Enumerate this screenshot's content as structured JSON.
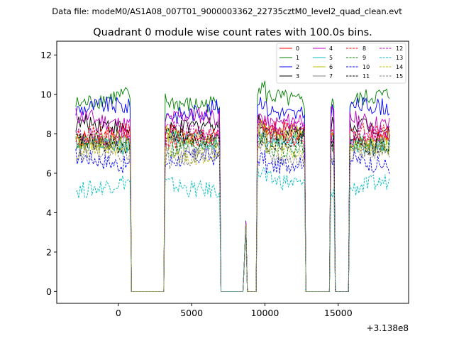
{
  "header": {
    "data_file": "Data file: modeM0/AS1A08_007T01_9000003362_22735cztM0_level2_quad_clean.evt"
  },
  "chart_data": {
    "type": "line",
    "title": "Quadrant 0 module wise count rates with 100.0s bins.",
    "xlabel": "",
    "ylabel": "",
    "offset_label": "+3.138e8",
    "xlim": [
      -4200,
      19800
    ],
    "ylim": [
      -0.6,
      12.7
    ],
    "xticks": [
      0,
      5000,
      10000,
      15000
    ],
    "yticks": [
      0,
      2,
      4,
      6,
      8,
      10,
      12
    ],
    "x_start": -2900,
    "x_step": 100,
    "segments": [
      [
        -2900,
        800
      ],
      [
        3200,
        6900
      ],
      [
        9500,
        12700
      ],
      [
        14500,
        14700
      ],
      [
        15800,
        18500
      ]
    ],
    "blips": [
      [
        8700,
        3.6
      ],
      [
        8600,
        1.6
      ]
    ],
    "legend": {
      "placement": "upper right",
      "entries": [
        {
          "label": "0",
          "color": "#ff0000",
          "dash": "solid",
          "level": 8.0
        },
        {
          "label": "1",
          "color": "#008000",
          "dash": "solid",
          "level": 9.7
        },
        {
          "label": "2",
          "color": "#0000ff",
          "dash": "solid",
          "level": 9.2
        },
        {
          "label": "3",
          "color": "#000000",
          "dash": "solid",
          "level": 8.3
        },
        {
          "label": "4",
          "color": "#bf00bf",
          "dash": "solid",
          "level": 8.7
        },
        {
          "label": "5",
          "color": "#00bfbf",
          "dash": "solid",
          "level": 7.6
        },
        {
          "label": "6",
          "color": "#bfbf00",
          "dash": "solid",
          "level": 7.8
        },
        {
          "label": "7",
          "color": "#808080",
          "dash": "solid",
          "level": 7.5
        },
        {
          "label": "8",
          "color": "#ff0000",
          "dash": "dashed",
          "level": 7.9
        },
        {
          "label": "9",
          "color": "#008000",
          "dash": "dashed",
          "level": 7.4
        },
        {
          "label": "10",
          "color": "#0000ff",
          "dash": "dashed",
          "level": 6.6
        },
        {
          "label": "11",
          "color": "#000000",
          "dash": "dashed",
          "level": 7.6
        },
        {
          "label": "12",
          "color": "#bf00bf",
          "dash": "dashed",
          "level": 8.1
        },
        {
          "label": "13",
          "color": "#00bfbf",
          "dash": "dashed",
          "level": 5.4
        },
        {
          "label": "14",
          "color": "#bfbf00",
          "dash": "dashed",
          "level": 7.1
        },
        {
          "label": "15",
          "color": "#808080",
          "dash": "dashed",
          "level": 6.9
        }
      ]
    }
  }
}
